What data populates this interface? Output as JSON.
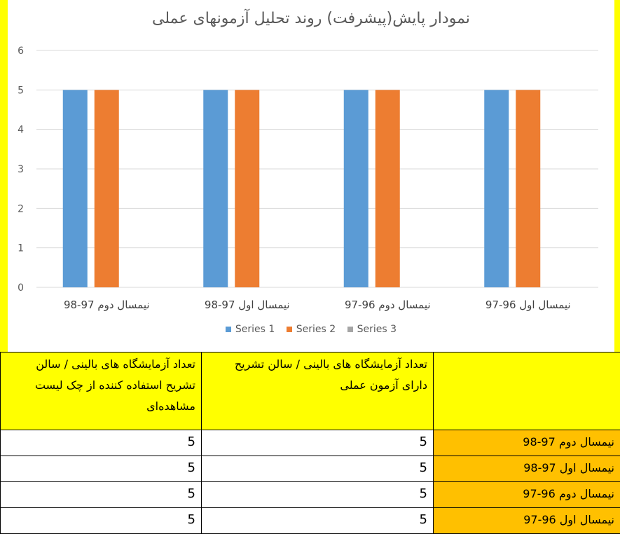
{
  "chart_data": {
    "type": "bar",
    "title": "نمودار پایش(پیشرفت) روند تحلیل آزمونهای عملی",
    "categories": [
      "نیمسال دوم 97-98",
      "نیمسال اول 97-98",
      "نیمسال دوم 96-97",
      "نیمسال اول 96-97"
    ],
    "series": [
      {
        "name": "Series 1",
        "color": "#5b9bd5",
        "values": [
          5,
          5,
          5,
          5
        ]
      },
      {
        "name": "Series 2",
        "color": "#ed7d31",
        "values": [
          5,
          5,
          5,
          5
        ]
      },
      {
        "name": "Series 3",
        "color": "#a5a5a5",
        "values": [
          null,
          null,
          null,
          null
        ]
      }
    ],
    "ylim": [
      0,
      6
    ],
    "yticks": [
      0,
      1,
      2,
      3,
      4,
      5,
      6
    ],
    "grid": true,
    "legend_position": "bottom"
  },
  "table": {
    "headers": [
      "تعداد آزمایشگاه های بالینی / سالن تشریح استفاده کننده از چک لیست مشاهده‌ای",
      "تعداد آزمایشگاه های بالینی / سالن تشریح دارای آزمون عملی",
      ""
    ],
    "rows": [
      {
        "a": "5",
        "b": "5",
        "label": "نیمسال دوم 97-98"
      },
      {
        "a": "5",
        "b": "5",
        "label": "نیمسال اول 97-98"
      },
      {
        "a": "5",
        "b": "5",
        "label": "نیمسال دوم 96-97"
      },
      {
        "a": "5",
        "b": "5",
        "label": "نیمسال اول 96-97"
      }
    ]
  }
}
